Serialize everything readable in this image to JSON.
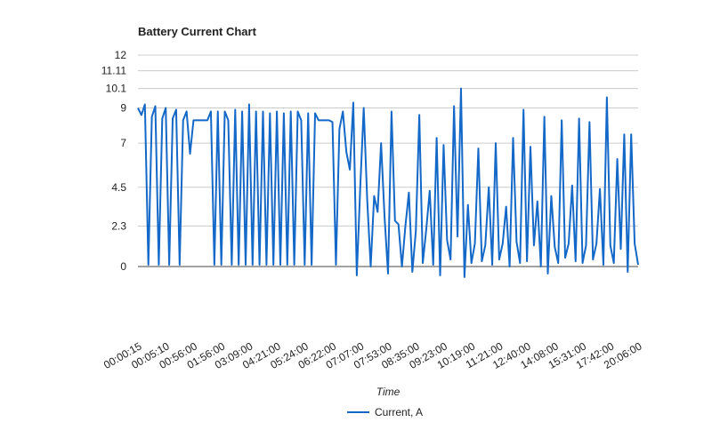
{
  "chart_data": {
    "type": "line",
    "title": "Battery Current Chart",
    "x_label": "Time",
    "categories": [
      "00:00:15",
      null,
      null,
      null,
      null,
      null,
      null,
      null,
      "00:05:10",
      null,
      null,
      null,
      null,
      null,
      null,
      null,
      "00:56:00",
      null,
      null,
      null,
      null,
      null,
      null,
      null,
      "01:56:00",
      null,
      null,
      null,
      null,
      null,
      null,
      null,
      "03:09:00",
      null,
      null,
      null,
      null,
      null,
      null,
      null,
      "04:21:00",
      null,
      null,
      null,
      null,
      null,
      null,
      null,
      "05:24:00",
      null,
      null,
      null,
      null,
      null,
      null,
      null,
      "06:22:00",
      null,
      null,
      null,
      null,
      null,
      null,
      null,
      "07:07:00",
      null,
      null,
      null,
      null,
      null,
      null,
      null,
      "07:53:00",
      null,
      null,
      null,
      null,
      null,
      null,
      null,
      "08:35:00",
      null,
      null,
      null,
      null,
      null,
      null,
      null,
      "09:23:00",
      null,
      null,
      null,
      null,
      null,
      null,
      null,
      "10:19:00",
      null,
      null,
      null,
      null,
      null,
      null,
      null,
      "11:21:00",
      null,
      null,
      null,
      null,
      null,
      null,
      null,
      "12:40:00",
      null,
      null,
      null,
      null,
      null,
      null,
      null,
      "14:08:00",
      null,
      null,
      null,
      null,
      null,
      null,
      null,
      "15:31:00",
      null,
      null,
      null,
      null,
      null,
      null,
      null,
      "17:42:00",
      null,
      null,
      null,
      null,
      null,
      null,
      null,
      "20:06:00"
    ],
    "series": [
      {
        "name": "Current, A",
        "color": "#1468c8",
        "values": [
          9.0,
          8.6,
          9.2,
          0.1,
          8.5,
          9.1,
          0.1,
          8.4,
          9.0,
          0.1,
          8.4,
          8.9,
          0.1,
          8.3,
          8.8,
          6.4,
          8.3,
          8.3,
          8.3,
          8.3,
          8.3,
          8.8,
          0.1,
          8.8,
          0.1,
          8.8,
          8.3,
          0.1,
          8.9,
          0.1,
          8.8,
          0.1,
          9.2,
          0.1,
          8.8,
          0.1,
          8.8,
          0.1,
          8.7,
          0.1,
          8.8,
          0.1,
          8.7,
          0.1,
          8.8,
          0.1,
          8.8,
          8.3,
          0.1,
          8.7,
          0.1,
          8.7,
          8.3,
          8.3,
          8.3,
          8.3,
          8.2,
          0.1,
          7.8,
          8.8,
          6.5,
          5.5,
          9.3,
          -0.5,
          4.5,
          9.0,
          3.8,
          0.0,
          4.0,
          3.1,
          7.0,
          2.8,
          -0.4,
          8.8,
          2.6,
          2.4,
          0.0,
          2.3,
          4.2,
          -0.3,
          2.0,
          8.6,
          0.2,
          2.1,
          4.3,
          0.1,
          7.3,
          -0.5,
          6.9,
          1.5,
          0.4,
          9.1,
          1.7,
          10.1,
          -0.6,
          3.5,
          0.2,
          1.3,
          6.7,
          0.3,
          1.2,
          4.5,
          0.1,
          7.0,
          0.4,
          1.3,
          3.4,
          0.0,
          7.3,
          1.4,
          0.2,
          8.9,
          0.3,
          6.8,
          1.2,
          3.7,
          0.0,
          8.5,
          -0.4,
          4.0,
          1.1,
          0.2,
          8.3,
          0.5,
          1.3,
          4.6,
          0.3,
          8.4,
          0.2,
          1.2,
          8.2,
          0.4,
          1.3,
          4.4,
          0.1,
          9.6,
          1.2,
          0.2,
          6.1,
          1.0,
          7.5,
          -0.3,
          7.5,
          1.3,
          0.1
        ]
      }
    ],
    "ylim": [
      0,
      12
    ],
    "yticks": [
      0,
      2.3,
      4.5,
      7,
      9,
      10.1,
      11.11,
      12
    ],
    "grid": true,
    "legend": "bottom"
  }
}
